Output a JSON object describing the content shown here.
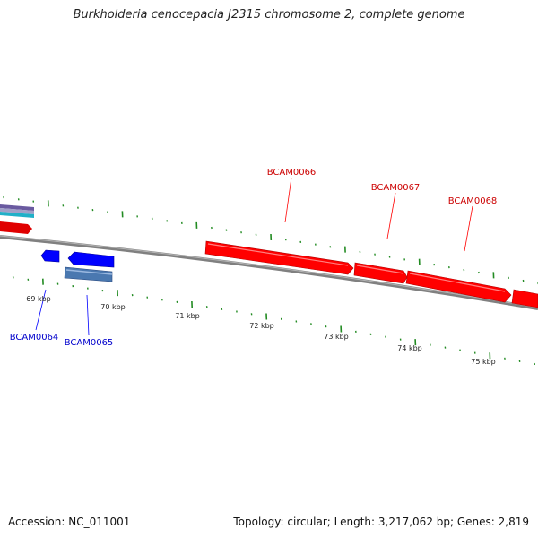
{
  "title": "Burkholderia cenocepacia J2315 chromosome 2, complete genome",
  "footer": {
    "accession": "Accession: NC_011001",
    "summary": "Topology: circular; Length: 3,217,062 bp; Genes: 2,819"
  },
  "colors": {
    "forward_gene": "#ff0000",
    "reverse_gene": "#0000ff",
    "backbone": "#808080",
    "tick": "#228b22",
    "forward_label": "#cc0000",
    "reverse_label": "#0000cc"
  },
  "kbp_labels": [
    "69 kbp",
    "70 kbp",
    "71 kbp",
    "72 kbp",
    "73 kbp",
    "74 kbp",
    "75 kbp"
  ],
  "genes": {
    "forward": [
      "BCAM0066",
      "BCAM0067",
      "BCAM0068"
    ],
    "reverse": [
      "BCAM0064",
      "BCAM0065"
    ]
  }
}
